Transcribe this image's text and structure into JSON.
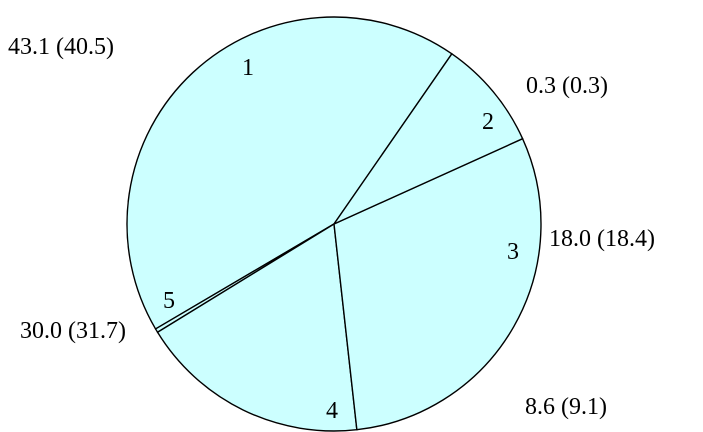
{
  "chart_data": {
    "type": "pie",
    "title": "",
    "slice_color": "#ccffff",
    "edge_color": "#000000",
    "slices": [
      {
        "id": "1",
        "value": 43.1,
        "value_alt": 40.5,
        "label": "43.1 (40.5)"
      },
      {
        "id": "2",
        "value": 0.3,
        "value_alt": 0.3,
        "label": "0.3 (0.3)"
      },
      {
        "id": "3",
        "value": 18.0,
        "value_alt": 18.4,
        "label": "18.0 (18.4)"
      },
      {
        "id": "4",
        "value": 30.0,
        "value_alt": 31.7,
        "label": "30.0 (31.7)"
      },
      {
        "id": "5",
        "value": 8.6,
        "value_alt": 9.1,
        "label": "8.6 (9.1)"
      }
    ]
  }
}
